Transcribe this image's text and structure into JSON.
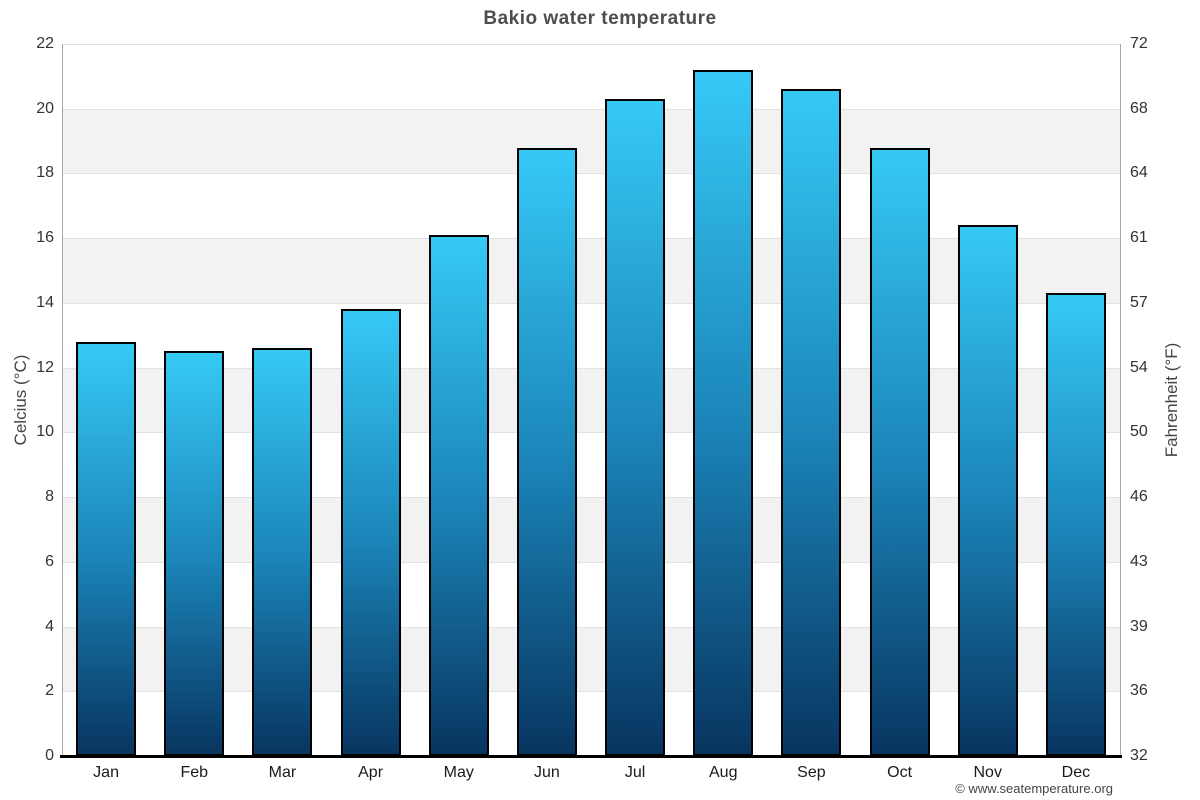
{
  "page": {
    "title": "Bakio water temperature",
    "attribution": "© www.seatemperature.org"
  },
  "chart_data": {
    "type": "bar",
    "title": "Bakio water temperature",
    "categories": [
      "Jan",
      "Feb",
      "Mar",
      "Apr",
      "May",
      "Jun",
      "Jul",
      "Aug",
      "Sep",
      "Oct",
      "Nov",
      "Dec"
    ],
    "values": [
      12.8,
      12.5,
      12.6,
      13.8,
      16.1,
      18.8,
      20.3,
      21.2,
      20.6,
      18.8,
      16.4,
      14.3
    ],
    "unit": "°C",
    "ylabel_left": "Celcius (°C)",
    "ylabel_right": "Fahrenheit (°F)",
    "ylim": [
      0,
      22
    ],
    "yticks_left": [
      0,
      2,
      4,
      6,
      8,
      10,
      12,
      14,
      16,
      18,
      20,
      22
    ],
    "yticks_right_labels": [
      "32",
      "36",
      "39",
      "43",
      "46",
      "50",
      "54",
      "57",
      "61",
      "64",
      "68",
      "72"
    ],
    "grid": true,
    "band_step_celsius": 2,
    "legend_position": "none",
    "colors": {
      "bar_gradient_top": "#36c9f6",
      "bar_gradient_mid": "#1b84b8",
      "bar_gradient_bottom": "#083560",
      "bar_border": "#000000",
      "band_gray": "#f2f2f2",
      "gridline": "#e2e2e2",
      "axis_line": "#a6a6a6",
      "baseline": "#000000",
      "title_text": "#4d4d4d",
      "tick_text": "#333333",
      "attribution_text": "#444444"
    }
  }
}
